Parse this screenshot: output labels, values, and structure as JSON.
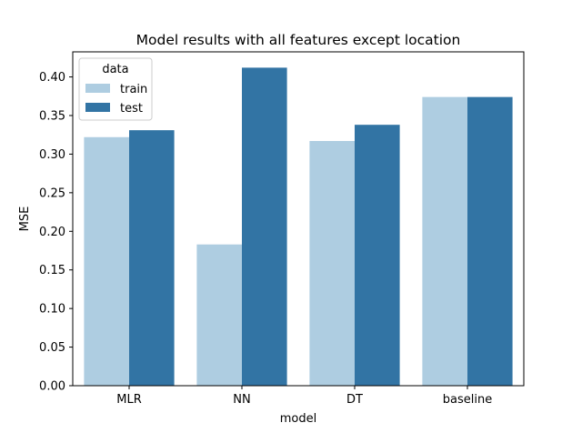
{
  "chart_data": {
    "type": "bar",
    "title": "Model results with all features except location",
    "xlabel": "model",
    "ylabel": "MSE",
    "categories": [
      "MLR",
      "NN",
      "DT",
      "baseline"
    ],
    "series": [
      {
        "name": "train",
        "color": "#aecde1",
        "values": [
          0.322,
          0.183,
          0.317,
          0.374
        ]
      },
      {
        "name": "test",
        "color": "#3274a4",
        "values": [
          0.331,
          0.412,
          0.338,
          0.374
        ]
      }
    ],
    "ylim": [
      0,
      0.4325
    ],
    "yticks": [
      "0.00",
      "0.05",
      "0.10",
      "0.15",
      "0.20",
      "0.25",
      "0.30",
      "0.35",
      "0.40"
    ],
    "ytick_values": [
      0,
      0.05,
      0.1,
      0.15,
      0.2,
      0.25,
      0.3,
      0.35,
      0.4
    ],
    "grid": false,
    "legend": {
      "title": "data",
      "placement": "top-left"
    }
  }
}
